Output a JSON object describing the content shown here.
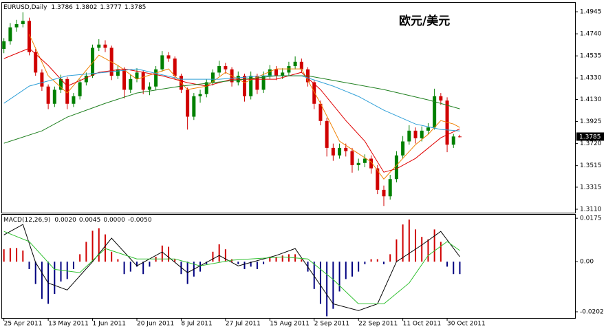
{
  "chart_data": [
    {
      "type": "candlestick",
      "symbol": "EURUSD,Daily",
      "title": "欧元/美元",
      "up_color": "#008000",
      "down_color": "#d00000",
      "xlim": [
        -0.4,
        90.2
      ],
      "ylim": [
        1.3078,
        1.5035
      ],
      "yticks": [
        1.4945,
        {
          "value": 1.474,
          "label": "1.4740"
        },
        1.4535,
        {
          "value": 1.433,
          "label": "1.4330"
        },
        {
          "value": 1.413,
          "label": "1.4130"
        },
        1.3925,
        {
          "value": 1.372,
          "label": "1.3720"
        },
        1.3515,
        1.3315,
        {
          "value": 1.311,
          "label": "1.3110"
        }
      ],
      "open": [
        1.46,
        1.467,
        1.48,
        1.483,
        1.486,
        1.457,
        1.438,
        1.425,
        1.409,
        1.422,
        1.432,
        1.409,
        1.416,
        1.429,
        1.435,
        1.461,
        1.464,
        1.461,
        1.435,
        1.441,
        1.422,
        1.432,
        1.438,
        1.422,
        1.425,
        1.441,
        1.454,
        1.451,
        1.435,
        1.422,
        1.397,
        1.416,
        1.418,
        1.429,
        1.438,
        1.444,
        1.441,
        1.429,
        1.435,
        1.416,
        1.435,
        1.422,
        1.435,
        1.441,
        1.435,
        1.438,
        1.444,
        1.448,
        1.441,
        1.429,
        1.409,
        1.393,
        1.368,
        1.361,
        1.368,
        1.365,
        1.352,
        1.354,
        1.358,
        1.349,
        1.329,
        1.323,
        1.339,
        1.361,
        1.374,
        1.384,
        1.377,
        1.384,
        1.387,
        1.416,
        1.412,
        1.371,
        1.3786
      ],
      "high": [
        1.47,
        1.484,
        1.487,
        1.494,
        1.489,
        1.46,
        1.441,
        1.427,
        1.425,
        1.436,
        1.434,
        1.419,
        1.432,
        1.438,
        1.464,
        1.469,
        1.468,
        1.463,
        1.445,
        1.443,
        1.436,
        1.442,
        1.44,
        1.429,
        1.444,
        1.458,
        1.457,
        1.453,
        1.437,
        1.424,
        1.419,
        1.422,
        1.432,
        1.441,
        1.449,
        1.447,
        1.443,
        1.439,
        1.437,
        1.439,
        1.437,
        1.439,
        1.445,
        1.444,
        1.442,
        1.448,
        1.453,
        1.451,
        1.443,
        1.431,
        1.412,
        1.396,
        1.372,
        1.372,
        1.372,
        1.368,
        1.358,
        1.362,
        1.361,
        1.352,
        1.333,
        1.343,
        1.365,
        1.379,
        1.389,
        1.387,
        1.388,
        1.391,
        1.423,
        1.419,
        1.415,
        1.381,
        1.3802
      ],
      "low": [
        1.456,
        1.464,
        1.476,
        1.48,
        1.454,
        1.435,
        1.421,
        1.404,
        1.406,
        1.419,
        1.404,
        1.406,
        1.413,
        1.426,
        1.433,
        1.458,
        1.457,
        1.431,
        1.432,
        1.414,
        1.419,
        1.429,
        1.418,
        1.417,
        1.422,
        1.439,
        1.448,
        1.432,
        1.419,
        1.385,
        1.394,
        1.41,
        1.415,
        1.426,
        1.435,
        1.437,
        1.425,
        1.426,
        1.411,
        1.413,
        1.418,
        1.419,
        1.432,
        1.431,
        1.432,
        1.435,
        1.441,
        1.438,
        1.425,
        1.404,
        1.389,
        1.36,
        1.356,
        1.358,
        1.36,
        1.345,
        1.347,
        1.35,
        1.344,
        1.325,
        1.314,
        1.32,
        1.336,
        1.358,
        1.371,
        1.372,
        1.374,
        1.381,
        1.385,
        1.408,
        1.364,
        1.368,
        1.3777
      ],
      "close": [
        1.467,
        1.48,
        1.483,
        1.486,
        1.457,
        1.438,
        1.425,
        1.409,
        1.422,
        1.432,
        1.409,
        1.416,
        1.429,
        1.435,
        1.461,
        1.464,
        1.461,
        1.435,
        1.441,
        1.422,
        1.432,
        1.438,
        1.422,
        1.425,
        1.441,
        1.454,
        1.451,
        1.435,
        1.422,
        1.397,
        1.416,
        1.418,
        1.429,
        1.438,
        1.444,
        1.441,
        1.429,
        1.435,
        1.416,
        1.435,
        1.422,
        1.435,
        1.441,
        1.435,
        1.438,
        1.444,
        1.448,
        1.441,
        1.429,
        1.409,
        1.393,
        1.368,
        1.361,
        1.368,
        1.365,
        1.352,
        1.354,
        1.358,
        1.349,
        1.329,
        1.323,
        1.339,
        1.361,
        1.374,
        1.384,
        1.377,
        1.384,
        1.387,
        1.416,
        1.412,
        1.371,
        1.3786,
        1.3785
      ],
      "series": [
        {
          "color": "#f08000",
          "x": [
            4,
            7,
            10,
            15,
            18,
            21,
            26,
            29,
            32,
            35,
            38,
            43,
            47,
            50,
            53,
            58,
            60,
            62,
            65,
            67,
            69,
            71,
            72
          ],
          "values": [
            1.4734,
            1.435,
            1.419,
            1.4542,
            1.4446,
            1.4318,
            1.4414,
            1.4222,
            1.4254,
            1.4382,
            1.4286,
            1.4414,
            1.4414,
            1.4094,
            1.3742,
            1.355,
            1.339,
            1.3518,
            1.371,
            1.3806,
            1.3934,
            1.3902,
            1.387
          ]
        },
        {
          "color": "#e00000",
          "x": [
            0,
            4,
            7,
            10,
            15,
            19,
            25,
            29,
            32,
            36,
            43,
            47,
            50,
            54,
            57,
            60,
            62,
            65,
            67,
            69,
            72
          ],
          "values": [
            1.451,
            1.4606,
            1.4446,
            1.4254,
            1.4382,
            1.4414,
            1.435,
            1.4286,
            1.4254,
            1.4318,
            1.4318,
            1.4382,
            1.4222,
            1.3934,
            1.3742,
            1.3454,
            1.3486,
            1.3582,
            1.3678,
            1.3774,
            1.3857
          ]
        },
        {
          "color": "#30a0d8",
          "x": [
            0,
            4,
            10,
            16,
            21,
            28,
            34,
            41,
            47,
            52,
            56,
            60,
            65,
            69,
            72
          ],
          "values": [
            1.4094,
            1.4254,
            1.435,
            1.4382,
            1.4414,
            1.4318,
            1.4318,
            1.435,
            1.435,
            1.4254,
            1.4158,
            1.403,
            1.3902,
            1.3851,
            1.3838
          ]
        },
        {
          "color": "#208020",
          "x": [
            0,
            6,
            10,
            16,
            21,
            28,
            35,
            43,
            48,
            54,
            60,
            67,
            72
          ],
          "values": [
            1.3723,
            1.3838,
            1.3966,
            1.4094,
            1.419,
            1.4254,
            1.4299,
            1.435,
            1.435,
            1.4286,
            1.4222,
            1.4126,
            1.4043
          ]
        }
      ]
    },
    {
      "type": "macd",
      "label": "MACD(12,26,9)",
      "readout": [
        {
          "value": 0.002,
          "label": "0.0020"
        },
        {
          "value": 0.0045,
          "label": "0.0045"
        },
        {
          "value": 0,
          "label": "0.0000"
        },
        {
          "value": -0.005,
          "label": "-0.0050"
        }
      ],
      "xlim": [
        -0.4,
        90.2
      ],
      "ylim": [
        -0.0227,
        0.0192
      ],
      "yticks": [
        0.0175,
        {
          "value": 0,
          "label": "0.00"
        },
        -0.0202
      ],
      "xticks": [
        {
          "value": 0,
          "label": "25 Apr 2011"
        },
        {
          "value": 7,
          "label": "13 May 2011"
        },
        {
          "value": 14,
          "label": "1 Jun 2011"
        },
        {
          "value": 21,
          "label": "20 Jun 2011"
        },
        {
          "value": 28,
          "label": "8 Jul 2011"
        },
        {
          "value": 35,
          "label": "27 Jul 2011"
        },
        {
          "value": 42,
          "label": "15 Aug 2011"
        },
        {
          "value": 49,
          "label": "2 Sep 2011"
        },
        {
          "value": 56,
          "label": "22 Sep 2011"
        },
        {
          "value": 63,
          "label": "11 Oct 2011"
        },
        {
          "value": 70,
          "label": "30 Oct 2011"
        }
      ],
      "histogram": {
        "up_color": "#d00000",
        "down_color": "#000080",
        "values": [
          0.005,
          0.0055,
          0.0055,
          0.0045,
          -0.003,
          -0.009,
          -0.015,
          -0.017,
          -0.013,
          -0.008,
          -0.007,
          -0.003,
          0.003,
          0.008,
          0.0125,
          0.0135,
          0.011,
          0.004,
          0.001,
          -0.005,
          -0.004,
          -0.002,
          -0.005,
          -0.002,
          0.002,
          0.0065,
          0.006,
          0.001,
          -0.005,
          -0.009,
          -0.006,
          -0.004,
          -0.001,
          0.004,
          0.007,
          0.005,
          0.001,
          -0.001,
          -0.003,
          -0.002,
          -0.003,
          -0.001,
          0.002,
          0.002,
          0.0025,
          0.003,
          0.003,
          0.001,
          -0.004,
          -0.011,
          -0.017,
          -0.022,
          -0.019,
          -0.012,
          -0.007,
          -0.006,
          -0.004,
          -0.001,
          0.001,
          0.001,
          -0.001,
          0.003,
          0.009,
          0.015,
          0.017,
          0.013,
          0.01,
          0.009,
          0.013,
          0.008,
          -0.002,
          -0.005,
          -0.005
        ]
      },
      "series": [
        {
          "color": "#000000",
          "x": [
            0,
            3,
            5,
            7,
            10,
            14,
            17,
            21,
            25,
            29,
            34,
            37,
            43,
            46,
            49,
            52,
            56,
            59,
            62,
            66,
            69,
            72
          ],
          "values": [
            0.0108,
            0.015,
            -0.0003,
            -0.0086,
            -0.0114,
            0,
            0.0095,
            -0.0017,
            0.0039,
            -0.0044,
            0.0025,
            -0.0017,
            0.0025,
            0.0053,
            -0.0058,
            -0.017,
            -0.0197,
            -0.017,
            0,
            0.0067,
            0.0122,
            0.002
          ]
        },
        {
          "color": "#30c030",
          "x": [
            0,
            4,
            8,
            12,
            16,
            21,
            27,
            31,
            36,
            44,
            48,
            52,
            56,
            60,
            64,
            67,
            70,
            72
          ],
          "values": [
            0.0122,
            0.0081,
            -0.0031,
            -0.0044,
            0.0053,
            0.0011,
            0.0011,
            -0.0017,
            0.0006,
            0.0019,
            0.0011,
            -0.0072,
            -0.017,
            -0.017,
            -0.0086,
            0.0025,
            0.0081,
            0.0045
          ]
        }
      ]
    }
  ]
}
